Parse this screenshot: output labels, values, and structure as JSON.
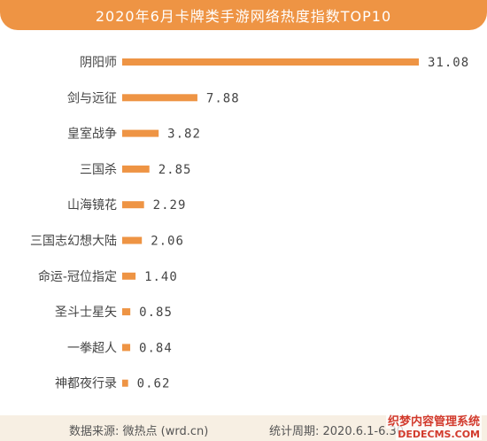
{
  "footer": {
    "source": "数据来源: 微热点 (wrd.cn)",
    "period": "统计周期: 2020.6.1-6.30"
  },
  "watermark": {
    "text": "织梦内容管理系统",
    "sub": "DEDECMS.COM"
  },
  "colors": {
    "accent": "#ee9444",
    "bar": "#ee9444",
    "footer_bg": "#f7efe3"
  },
  "chart_data": {
    "type": "bar",
    "orientation": "horizontal",
    "title": "2020年6月卡牌类手游网络热度指数TOP10",
    "categories": [
      "阴阳师",
      "剑与远征",
      "皇室战争",
      "三国杀",
      "山海镜花",
      "三国志幻想大陆",
      "命运-冠位指定",
      "圣斗士星矢",
      "一拳超人",
      "神都夜行录"
    ],
    "values": [
      31.08,
      7.88,
      3.82,
      2.85,
      2.29,
      2.06,
      1.4,
      0.85,
      0.84,
      0.62
    ],
    "value_labels": [
      "31.08",
      "7.88",
      "3.82",
      "2.85",
      "2.29",
      "2.06",
      "1.40",
      "0.85",
      "0.84",
      "0.62"
    ],
    "xlim": [
      0,
      31.08
    ],
    "grid": false,
    "legend": "none"
  }
}
